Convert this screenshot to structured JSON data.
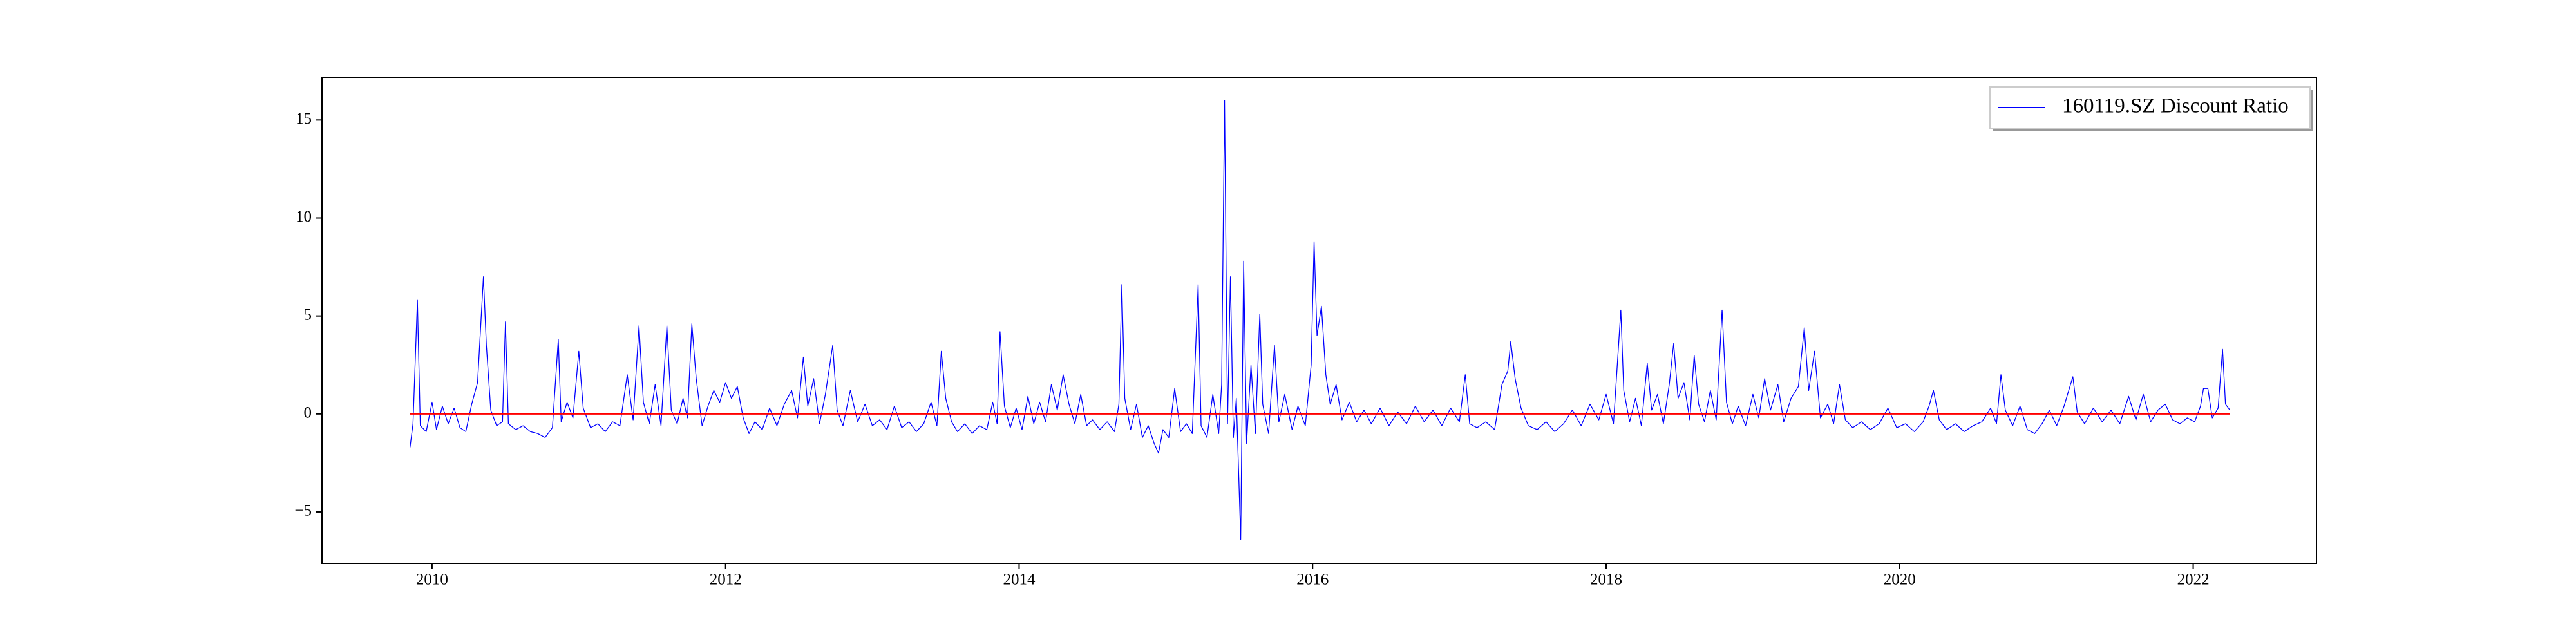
{
  "chart_data": {
    "type": "line",
    "xlim": [
      2009.25,
      2022.84
    ],
    "xticks": [
      2010,
      2012,
      2014,
      2016,
      2018,
      2020,
      2022
    ],
    "ylim": [
      -7.63,
      17.18
    ],
    "yticks": [
      {
        "value": -5,
        "label": "−5"
      },
      0,
      5,
      10,
      15
    ],
    "grid": false,
    "legend": "upper right",
    "series": [
      {
        "name": "160119.SZ Discount Ratio",
        "color": "#0000ff",
        "x": [
          2009.85,
          2009.87,
          2009.9,
          2009.92,
          2009.96,
          2010.0,
          2010.03,
          2010.07,
          2010.11,
          2010.15,
          2010.19,
          2010.23,
          2010.27,
          2010.31,
          2010.35,
          2010.37,
          2010.4,
          2010.44,
          2010.48,
          2010.5,
          2010.52,
          2010.57,
          2010.62,
          2010.67,
          2010.72,
          2010.77,
          2010.82,
          2010.86,
          2010.88,
          2010.92,
          2010.96,
          2011.0,
          2011.03,
          2011.08,
          2011.13,
          2011.18,
          2011.23,
          2011.28,
          2011.33,
          2011.37,
          2011.41,
          2011.44,
          2011.48,
          2011.52,
          2011.56,
          2011.6,
          2011.63,
          2011.67,
          2011.71,
          2011.74,
          2011.77,
          2011.8,
          2011.84,
          2011.88,
          2011.92,
          2011.96,
          2012.0,
          2012.04,
          2012.08,
          2012.12,
          2012.16,
          2012.2,
          2012.25,
          2012.3,
          2012.35,
          2012.4,
          2012.45,
          2012.49,
          2012.53,
          2012.56,
          2012.6,
          2012.64,
          2012.68,
          2012.73,
          2012.76,
          2012.8,
          2012.85,
          2012.9,
          2012.95,
          2013.0,
          2013.05,
          2013.1,
          2013.15,
          2013.2,
          2013.25,
          2013.3,
          2013.35,
          2013.4,
          2013.44,
          2013.47,
          2013.5,
          2013.54,
          2013.58,
          2013.63,
          2013.68,
          2013.73,
          2013.78,
          2013.82,
          2013.85,
          2013.87,
          2013.9,
          2013.94,
          2013.98,
          2014.02,
          2014.06,
          2014.1,
          2014.14,
          2014.18,
          2014.22,
          2014.26,
          2014.3,
          2014.34,
          2014.38,
          2014.42,
          2014.46,
          2014.5,
          2014.55,
          2014.6,
          2014.65,
          2014.68,
          2014.7,
          2014.72,
          2014.76,
          2014.8,
          2014.84,
          2014.88,
          2014.92,
          2014.95,
          2014.98,
          2015.02,
          2015.06,
          2015.1,
          2015.14,
          2015.18,
          2015.22,
          2015.24,
          2015.28,
          2015.32,
          2015.36,
          2015.38,
          2015.4,
          2015.42,
          2015.44,
          2015.46,
          2015.48,
          2015.51,
          2015.53,
          2015.55,
          2015.58,
          2015.61,
          2015.64,
          2015.66,
          2015.7,
          2015.74,
          2015.77,
          2015.81,
          2015.86,
          2015.9,
          2015.95,
          2015.99,
          2016.01,
          2016.03,
          2016.06,
          2016.09,
          2016.12,
          2016.16,
          2016.2,
          2016.25,
          2016.3,
          2016.35,
          2016.4,
          2016.46,
          2016.52,
          2016.58,
          2016.64,
          2016.7,
          2016.76,
          2016.82,
          2016.88,
          2016.94,
          2017.0,
          2017.04,
          2017.07,
          2017.12,
          2017.18,
          2017.24,
          2017.29,
          2017.33,
          2017.35,
          2017.38,
          2017.42,
          2017.47,
          2017.53,
          2017.59,
          2017.65,
          2017.71,
          2017.77,
          2017.83,
          2017.89,
          2017.95,
          2018.0,
          2018.05,
          2018.1,
          2018.12,
          2018.16,
          2018.2,
          2018.24,
          2018.28,
          2018.31,
          2018.35,
          2018.39,
          2018.43,
          2018.46,
          2018.49,
          2018.53,
          2018.57,
          2018.6,
          2018.63,
          2018.67,
          2018.71,
          2018.75,
          2018.79,
          2018.82,
          2018.86,
          2018.9,
          2018.95,
          2019.0,
          2019.04,
          2019.08,
          2019.12,
          2019.17,
          2019.21,
          2019.26,
          2019.31,
          2019.35,
          2019.38,
          2019.42,
          2019.46,
          2019.51,
          2019.55,
          2019.59,
          2019.63,
          2019.68,
          2019.74,
          2019.8,
          2019.86,
          2019.92,
          2019.98,
          2020.04,
          2020.1,
          2020.16,
          2020.2,
          2020.23,
          2020.27,
          2020.32,
          2020.38,
          2020.44,
          2020.5,
          2020.56,
          2020.62,
          2020.66,
          2020.69,
          2020.72,
          2020.77,
          2020.82,
          2020.87,
          2020.92,
          2020.97,
          2021.02,
          2021.07,
          2021.12,
          2021.18,
          2021.21,
          2021.26,
          2021.32,
          2021.38,
          2021.44,
          2021.5,
          2021.56,
          2021.61,
          2021.66,
          2021.71,
          2021.76,
          2021.81,
          2021.86,
          2021.91,
          2021.96,
          2022.01,
          2022.05,
          2022.07,
          2022.1,
          2022.13,
          2022.17,
          2022.2,
          2022.22,
          2022.25
        ],
        "values": [
          -1.7,
          -0.5,
          5.8,
          -0.6,
          -0.9,
          0.6,
          -0.8,
          0.4,
          -0.5,
          0.3,
          -0.7,
          -0.9,
          0.5,
          1.6,
          7.0,
          3.5,
          0.2,
          -0.6,
          -0.4,
          4.7,
          -0.5,
          -0.8,
          -0.6,
          -0.9,
          -1.0,
          -1.2,
          -0.7,
          3.8,
          -0.4,
          0.6,
          -0.2,
          3.2,
          0.3,
          -0.7,
          -0.5,
          -0.9,
          -0.4,
          -0.6,
          2.0,
          -0.3,
          4.5,
          0.6,
          -0.5,
          1.5,
          -0.6,
          4.5,
          0.2,
          -0.5,
          0.8,
          -0.2,
          4.6,
          1.8,
          -0.6,
          0.4,
          1.2,
          0.6,
          1.6,
          0.8,
          1.4,
          -0.2,
          -1.0,
          -0.4,
          -0.8,
          0.3,
          -0.6,
          0.5,
          1.2,
          -0.2,
          2.9,
          0.4,
          1.8,
          -0.5,
          1.0,
          3.5,
          0.2,
          -0.6,
          1.2,
          -0.4,
          0.5,
          -0.6,
          -0.3,
          -0.8,
          0.4,
          -0.7,
          -0.4,
          -0.9,
          -0.5,
          0.6,
          -0.6,
          3.2,
          0.8,
          -0.4,
          -0.9,
          -0.5,
          -1.0,
          -0.6,
          -0.8,
          0.6,
          -0.5,
          4.2,
          0.4,
          -0.7,
          0.3,
          -0.8,
          0.9,
          -0.5,
          0.6,
          -0.4,
          1.5,
          0.2,
          2.0,
          0.5,
          -0.5,
          1.0,
          -0.6,
          -0.3,
          -0.8,
          -0.4,
          -0.9,
          0.5,
          6.6,
          0.8,
          -0.8,
          0.5,
          -1.2,
          -0.6,
          -1.5,
          -2.0,
          -0.8,
          -1.2,
          1.3,
          -0.9,
          -0.5,
          -1.0,
          6.6,
          -0.6,
          -1.2,
          1.0,
          -1.0,
          1.5,
          16.0,
          -0.5,
          7.0,
          -1.2,
          0.8,
          -6.4,
          7.8,
          -1.5,
          2.5,
          -1.0,
          5.1,
          0.5,
          -1.0,
          3.5,
          -0.4,
          1.0,
          -0.8,
          0.4,
          -0.6,
          2.5,
          8.8,
          4.0,
          5.5,
          2.0,
          0.5,
          1.5,
          -0.3,
          0.6,
          -0.4,
          0.2,
          -0.5,
          0.3,
          -0.6,
          0.1,
          -0.5,
          0.4,
          -0.4,
          0.2,
          -0.6,
          0.3,
          -0.4,
          2.0,
          -0.5,
          -0.7,
          -0.4,
          -0.8,
          1.5,
          2.2,
          3.7,
          1.8,
          0.3,
          -0.6,
          -0.8,
          -0.4,
          -0.9,
          -0.5,
          0.2,
          -0.6,
          0.5,
          -0.3,
          1.0,
          -0.5,
          5.3,
          1.2,
          -0.4,
          0.8,
          -0.6,
          2.6,
          0.2,
          1.0,
          -0.5,
          1.5,
          3.6,
          0.8,
          1.6,
          -0.3,
          3.0,
          0.5,
          -0.4,
          1.2,
          -0.3,
          5.3,
          0.6,
          -0.5,
          0.4,
          -0.6,
          1.0,
          -0.2,
          1.8,
          0.2,
          1.5,
          -0.4,
          0.8,
          1.4,
          4.4,
          1.2,
          3.2,
          -0.2,
          0.5,
          -0.5,
          1.5,
          -0.3,
          -0.7,
          -0.4,
          -0.8,
          -0.5,
          0.3,
          -0.7,
          -0.5,
          -0.9,
          -0.4,
          0.4,
          1.2,
          -0.3,
          -0.8,
          -0.5,
          -0.9,
          -0.6,
          -0.4,
          0.3,
          -0.5,
          2.0,
          0.2,
          -0.6,
          0.4,
          -0.8,
          -1.0,
          -0.5,
          0.2,
          -0.6,
          0.4,
          1.9,
          0.1,
          -0.5,
          0.3,
          -0.4,
          0.2,
          -0.5,
          0.9,
          -0.3,
          1.0,
          -0.4,
          0.2,
          0.5,
          -0.3,
          -0.5,
          -0.2,
          -0.4,
          0.4,
          1.3,
          1.3,
          -0.2,
          0.3,
          3.3,
          0.5,
          0.2
        ]
      },
      {
        "color": "#ff0000",
        "x": [
          2009.85,
          2022.25
        ],
        "values": [
          0,
          0
        ]
      }
    ]
  }
}
